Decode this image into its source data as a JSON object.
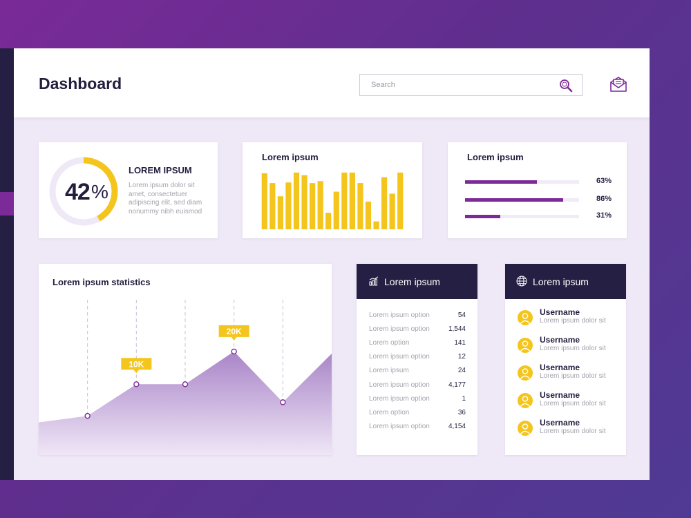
{
  "header": {
    "title": "Dashboard",
    "search_placeholder": "Search",
    "search_icon": "magnifier-icon",
    "mail_icon": "envelope-icon"
  },
  "colors": {
    "accent": "#7b2a98",
    "yellow": "#f4c51d",
    "dark": "#252043",
    "app_bg": "#efe8f6",
    "track": "#f1eaf7"
  },
  "summary_card": {
    "percent_value": "42",
    "percent_unit": "%",
    "percent": 42,
    "title": "LOREM IPSUM",
    "text": "Lorem ipsum dolor sit amet, consectetuer adipiscing elit, sed diam nonummy nibh euismod"
  },
  "bar_card": {
    "title": "Lorem ipsum",
    "chart_data": {
      "type": "bar",
      "values": [
        85,
        70,
        50,
        71,
        86,
        82,
        70,
        73,
        25,
        57,
        86,
        86,
        70,
        42,
        12,
        79,
        54,
        86
      ],
      "ylim": [
        0,
        90
      ]
    }
  },
  "progress_card": {
    "title": "Lorem ipsum",
    "items": [
      {
        "label": "63%",
        "value": 63
      },
      {
        "label": "86%",
        "value": 86
      },
      {
        "label": "31%",
        "value": 31
      }
    ]
  },
  "stats_card": {
    "title": "Lorem ipsum statistics",
    "chart_data": {
      "type": "area",
      "x": [
        0,
        1,
        2,
        3,
        4,
        5,
        6
      ],
      "y": [
        6,
        7.2,
        13,
        13,
        19,
        9.7,
        18.6
      ],
      "marked_x": [
        1,
        2,
        3,
        4,
        5
      ],
      "ylim": [
        0,
        30
      ],
      "annotations": [
        {
          "x": 2,
          "y": 13,
          "label": "10K"
        },
        {
          "x": 4,
          "y": 19,
          "label": "20K"
        }
      ],
      "grid": "vertical dashed"
    }
  },
  "options_card": {
    "title": "Lorem ipsum",
    "icon": "bar-chart-icon",
    "rows": [
      {
        "label": "Lorem ipsum option",
        "value": "54"
      },
      {
        "label": "Lorem ipsum option",
        "value": "1,544"
      },
      {
        "label": "Lorem option",
        "value": "141"
      },
      {
        "label": "Lorem ipsum option",
        "value": "12"
      },
      {
        "label": "Lorem ipsum",
        "value": "24"
      },
      {
        "label": "Lorem ipsum option",
        "value": "4,177"
      },
      {
        "label": "Lorem ipsum option",
        "value": "1"
      },
      {
        "label": "Lorem option",
        "value": "36"
      },
      {
        "label": "Lorem ipsum option",
        "value": "4,154"
      }
    ]
  },
  "users_card": {
    "title": "Lorem ipsum",
    "icon": "globe-icon",
    "users": [
      {
        "name": "Username",
        "desc": "Lorem ipsum dolor sit"
      },
      {
        "name": "Username",
        "desc": "Lorem ipsum dolor sit"
      },
      {
        "name": "Username",
        "desc": "Lorem ipsum dolor sit"
      },
      {
        "name": "Username",
        "desc": "Lorem ipsum dolor sit"
      },
      {
        "name": "Username",
        "desc": "Lorem ipsum dolor sit"
      }
    ]
  }
}
